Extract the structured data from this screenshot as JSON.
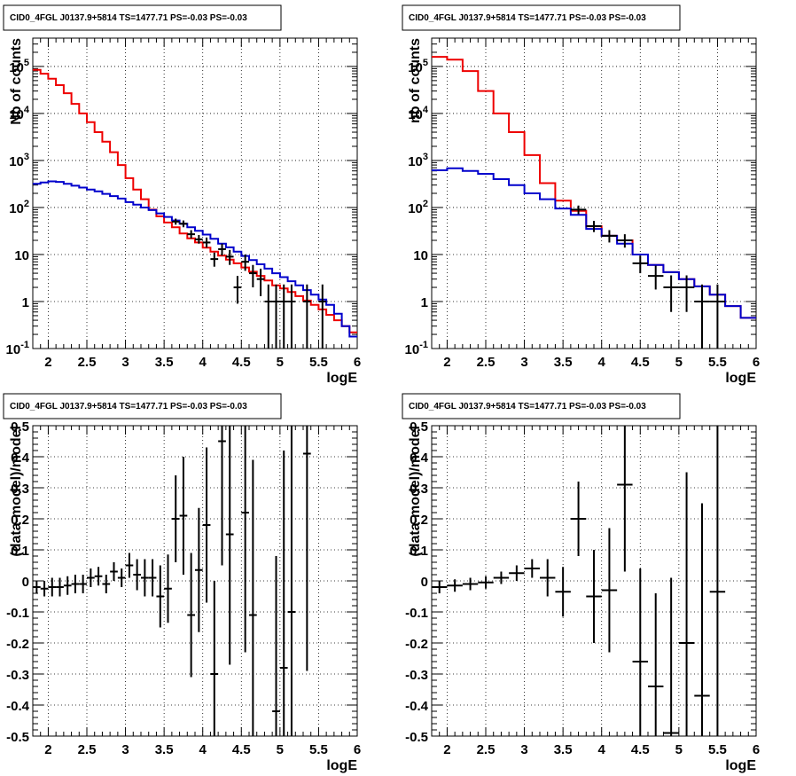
{
  "colors": {
    "data": "#000000",
    "model": "#ee0000",
    "bkg": "#0000cc",
    "grid": "#000000"
  },
  "chart_data": [
    {
      "type": "line",
      "title": "CID0_4FGL J0137.9+5814 TS=1477.71 PS=-0.03 PS=-0.03",
      "xlabel": "logE",
      "ylabel": "Nb of counts",
      "xlim": [
        1.8,
        6.0
      ],
      "ylim": [
        0.1,
        400000
      ],
      "yscale": "log",
      "grid": true,
      "xticks": [
        "2",
        "2.5",
        "3",
        "3.5",
        "4",
        "4.5",
        "5",
        "5.5",
        "6"
      ],
      "yticks": [
        "10^-1",
        "1",
        "10",
        "10^2",
        "10^3",
        "10^4",
        "10^5"
      ],
      "bin_edges": [
        1.8,
        1.9,
        2.0,
        2.1,
        2.2,
        2.3,
        2.4,
        2.5,
        2.6,
        2.7,
        2.8,
        2.9,
        3.0,
        3.1,
        3.2,
        3.3,
        3.4,
        3.5,
        3.6,
        3.7,
        3.8,
        3.9,
        4.0,
        4.1,
        4.2,
        4.3,
        4.4,
        4.5,
        4.6,
        4.7,
        4.8,
        4.9,
        5.0,
        5.1,
        5.2,
        5.3,
        5.4,
        5.5,
        5.6,
        5.7,
        5.8,
        5.9,
        6.0
      ],
      "series": [
        {
          "values": [
            85000,
            70000,
            55000,
            40000,
            27000,
            16000,
            10000,
            6500,
            4000,
            2500,
            1500,
            800,
            420,
            240,
            150,
            90,
            65,
            48,
            38,
            28,
            22,
            18,
            14,
            11.5,
            9.5,
            7.8,
            6.5,
            5.3,
            4.3,
            3.5,
            2.8,
            2.2,
            1.9,
            1.6,
            1.3,
            1.05,
            0.85,
            0.68,
            0.52,
            0.4,
            0.3,
            0.22
          ],
          "color": "red"
        },
        {
          "values": [
            320,
            340,
            360,
            350,
            320,
            290,
            265,
            240,
            220,
            195,
            175,
            155,
            130,
            115,
            100,
            88,
            75,
            63,
            53,
            45,
            38,
            32,
            26.5,
            21.5,
            17,
            14.2,
            11.5,
            9.3,
            7.6,
            6.2,
            5.0,
            4.0,
            3.3,
            2.7,
            2.2,
            1.75,
            1.4,
            1.1,
            0.85,
            0.55,
            0.3,
            0.18
          ],
          "color": "blue"
        }
      ],
      "points": [
        {
          "x": 3.65,
          "y": 50,
          "lo": 43,
          "hi": 58,
          "xerr": 0.05
        },
        {
          "x": 3.75,
          "y": 45,
          "lo": 38,
          "hi": 53,
          "xerr": 0.05
        },
        {
          "x": 3.85,
          "y": 27,
          "lo": 22,
          "hi": 33,
          "xerr": 0.05
        },
        {
          "x": 3.95,
          "y": 21,
          "lo": 17,
          "hi": 26,
          "xerr": 0.05
        },
        {
          "x": 4.05,
          "y": 18,
          "lo": 14,
          "hi": 23,
          "xerr": 0.05
        },
        {
          "x": 4.15,
          "y": 8,
          "lo": 5.5,
          "hi": 11,
          "xerr": 0.05
        },
        {
          "x": 4.25,
          "y": 13,
          "lo": 9.5,
          "hi": 17,
          "xerr": 0.05
        },
        {
          "x": 4.35,
          "y": 9,
          "lo": 6,
          "hi": 12.5,
          "xerr": 0.05
        },
        {
          "x": 4.45,
          "y": 2,
          "lo": 0.9,
          "hi": 3.5,
          "xerr": 0.05
        },
        {
          "x": 4.55,
          "y": 7,
          "lo": 4.5,
          "hi": 10,
          "xerr": 0.05
        },
        {
          "x": 4.65,
          "y": 4,
          "lo": 2,
          "hi": 6,
          "xerr": 0.05
        },
        {
          "x": 4.75,
          "y": 3,
          "lo": 1.3,
          "hi": 5,
          "xerr": 0.05
        },
        {
          "x": 4.85,
          "y": 1,
          "lo": 0.1,
          "hi": 2.3,
          "xerr": 0.05
        },
        {
          "x": 4.95,
          "y": 1,
          "lo": 0.1,
          "hi": 2.3,
          "xerr": 0.05
        },
        {
          "x": 5.05,
          "y": 1,
          "lo": 0.1,
          "hi": 2.3,
          "xerr": 0.05
        },
        {
          "x": 5.15,
          "y": 1,
          "lo": 0.1,
          "hi": 2.3,
          "xerr": 0.05
        },
        {
          "x": 5.35,
          "y": 1,
          "lo": 0.1,
          "hi": 2.3,
          "xerr": 0.05
        },
        {
          "x": 5.55,
          "y": 1,
          "lo": 0.1,
          "hi": 2.3,
          "xerr": 0.05
        }
      ]
    },
    {
      "type": "line",
      "title": "CID0_4FGL J0137.9+5814 TS=1477.71 PS=-0.03 PS=-0.03",
      "xlabel": "logE",
      "ylabel": "nb of counts",
      "xlim": [
        1.8,
        6.0
      ],
      "ylim": [
        0.1,
        400000
      ],
      "yscale": "log",
      "grid": true,
      "xticks": [
        "2",
        "2.5",
        "3",
        "3.5",
        "4",
        "4.5",
        "5",
        "5.5",
        "6"
      ],
      "yticks": [
        "10^-1",
        "1",
        "10",
        "10^2",
        "10^3",
        "10^4",
        "10^5"
      ],
      "bin_edges": [
        1.8,
        2.0,
        2.2,
        2.4,
        2.6,
        2.8,
        3.0,
        3.2,
        3.4,
        3.6,
        3.8,
        4.0,
        4.2,
        4.4,
        4.6,
        4.8,
        5.0,
        5.2,
        5.4,
        5.6,
        5.8,
        6.0
      ],
      "series": [
        {
          "values": [
            160000,
            140000,
            80000,
            30000,
            10000,
            4000,
            1300,
            330,
            140,
            85,
            40,
            25,
            20,
            10,
            6,
            4.2,
            3,
            2.1,
            1.4,
            0.8,
            0.45
          ],
          "color": "red"
        },
        {
          "values": [
            620,
            680,
            600,
            520,
            400,
            300,
            200,
            150,
            95,
            70,
            35,
            25,
            17,
            10,
            6,
            4.2,
            3,
            2.1,
            1.4,
            0.8,
            0.45
          ],
          "color": "blue"
        }
      ],
      "points": [
        {
          "x": 3.7,
          "y": 90,
          "lo": 72,
          "hi": 110,
          "xerr": 0.1
        },
        {
          "x": 3.9,
          "y": 40,
          "lo": 30,
          "hi": 52,
          "xerr": 0.1
        },
        {
          "x": 4.1,
          "y": 25,
          "lo": 18,
          "hi": 33,
          "xerr": 0.1
        },
        {
          "x": 4.3,
          "y": 20,
          "lo": 14,
          "hi": 27,
          "xerr": 0.1
        },
        {
          "x": 4.5,
          "y": 6.5,
          "lo": 4,
          "hi": 9.5,
          "xerr": 0.1
        },
        {
          "x": 4.7,
          "y": 3.5,
          "lo": 1.8,
          "hi": 5.8,
          "xerr": 0.1
        },
        {
          "x": 4.9,
          "y": 2,
          "lo": 0.6,
          "hi": 3.6,
          "xerr": 0.1
        },
        {
          "x": 5.1,
          "y": 2,
          "lo": 0.6,
          "hi": 3.6,
          "xerr": 0.1
        },
        {
          "x": 5.3,
          "y": 1,
          "lo": 0.1,
          "hi": 2.3,
          "xerr": 0.1
        },
        {
          "x": 5.5,
          "y": 1,
          "lo": 0.1,
          "hi": 2.3,
          "xerr": 0.1
        }
      ]
    },
    {
      "type": "scatter",
      "title": "CID0_4FGL J0137.9+5814 TS=1477.71 PS=-0.03 PS=-0.03",
      "xlabel": "logE",
      "ylabel": "(data-model)/model",
      "xlim": [
        1.8,
        6.0
      ],
      "ylim": [
        -0.5,
        0.5
      ],
      "grid": true,
      "xticks": [
        "2",
        "2.5",
        "3",
        "3.5",
        "4",
        "4.5",
        "5",
        "5.5",
        "6"
      ],
      "yticks": [
        "-0.5",
        "-0.4",
        "-0.3",
        "-0.2",
        "-0.1",
        "0",
        "0.1",
        "0.2",
        "0.3",
        "0.4",
        "0.5"
      ],
      "points": [
        {
          "x": 1.85,
          "y": -0.02,
          "err": 0.02,
          "xerr": 0.05
        },
        {
          "x": 1.95,
          "y": -0.025,
          "err": 0.025,
          "xerr": 0.05
        },
        {
          "x": 2.05,
          "y": -0.02,
          "err": 0.03,
          "xerr": 0.05
        },
        {
          "x": 2.15,
          "y": -0.02,
          "err": 0.03,
          "xerr": 0.05
        },
        {
          "x": 2.25,
          "y": -0.015,
          "err": 0.03,
          "xerr": 0.05
        },
        {
          "x": 2.35,
          "y": -0.01,
          "err": 0.03,
          "xerr": 0.05
        },
        {
          "x": 2.45,
          "y": -0.01,
          "err": 0.03,
          "xerr": 0.05
        },
        {
          "x": 2.55,
          "y": 0.01,
          "err": 0.03,
          "xerr": 0.05
        },
        {
          "x": 2.65,
          "y": 0.015,
          "err": 0.03,
          "xerr": 0.05
        },
        {
          "x": 2.75,
          "y": -0.01,
          "err": 0.03,
          "xerr": 0.05
        },
        {
          "x": 2.85,
          "y": 0.03,
          "err": 0.03,
          "xerr": 0.05
        },
        {
          "x": 2.95,
          "y": 0.01,
          "err": 0.03,
          "xerr": 0.05
        },
        {
          "x": 3.05,
          "y": 0.05,
          "err": 0.04,
          "xerr": 0.05
        },
        {
          "x": 3.15,
          "y": 0.02,
          "err": 0.05,
          "xerr": 0.05
        },
        {
          "x": 3.25,
          "y": 0.01,
          "err": 0.06,
          "xerr": 0.05
        },
        {
          "x": 3.35,
          "y": 0.01,
          "err": 0.06,
          "xerr": 0.05
        },
        {
          "x": 3.45,
          "y": -0.05,
          "err": 0.1,
          "xerr": 0.05
        },
        {
          "x": 3.55,
          "y": -0.025,
          "err": 0.11,
          "xerr": 0.05
        },
        {
          "x": 3.65,
          "y": 0.2,
          "err": 0.14,
          "xerr": 0.05
        },
        {
          "x": 3.75,
          "y": 0.21,
          "err": 0.19,
          "xerr": 0.05
        },
        {
          "x": 3.85,
          "y": -0.11,
          "err": 0.2,
          "xerr": 0.05
        },
        {
          "x": 3.95,
          "y": 0.035,
          "err": 0.2,
          "xerr": 0.05
        },
        {
          "x": 4.05,
          "y": 0.18,
          "err": 0.25,
          "xerr": 0.05
        },
        {
          "x": 4.15,
          "y": -0.3,
          "err": 0.3,
          "xerr": 0.05
        },
        {
          "x": 4.25,
          "y": 0.45,
          "err": 0.4,
          "xerr": 0.05
        },
        {
          "x": 4.35,
          "y": 0.15,
          "err": 0.42,
          "xerr": 0.05
        },
        {
          "x": 4.55,
          "y": 0.22,
          "err": 0.45,
          "xerr": 0.05
        },
        {
          "x": 4.65,
          "y": -0.11,
          "err": 0.5,
          "xerr": 0.05
        },
        {
          "x": 4.95,
          "y": -0.42,
          "err": 0.5,
          "xerr": 0.05
        },
        {
          "x": 5.05,
          "y": -0.28,
          "err": 0.7,
          "xerr": 0.05
        },
        {
          "x": 5.15,
          "y": -0.1,
          "err": 0.7,
          "xerr": 0.05
        },
        {
          "x": 5.35,
          "y": 0.41,
          "err": 0.7,
          "xerr": 0.05
        }
      ]
    },
    {
      "type": "scatter",
      "title": "CID0_4FGL J0137.9+5814 TS=1477.71 PS=-0.03 PS=-0.03",
      "xlabel": "logE",
      "ylabel": "(data-model)/model",
      "xlim": [
        1.8,
        6.0
      ],
      "ylim": [
        -0.5,
        0.5
      ],
      "grid": true,
      "xticks": [
        "2",
        "2.5",
        "3",
        "3.5",
        "4",
        "4.5",
        "5",
        "5.5",
        "6"
      ],
      "yticks": [
        "-0.5",
        "-0.4",
        "-0.3",
        "-0.2",
        "-0.1",
        "0",
        "0.1",
        "0.2",
        "0.3",
        "0.4",
        "0.5"
      ],
      "points": [
        {
          "x": 1.9,
          "y": -0.02,
          "err": 0.02,
          "xerr": 0.1
        },
        {
          "x": 2.1,
          "y": -0.015,
          "err": 0.02,
          "xerr": 0.1
        },
        {
          "x": 2.3,
          "y": -0.01,
          "err": 0.02,
          "xerr": 0.1
        },
        {
          "x": 2.5,
          "y": -0.005,
          "err": 0.02,
          "xerr": 0.1
        },
        {
          "x": 2.7,
          "y": 0.01,
          "err": 0.02,
          "xerr": 0.1
        },
        {
          "x": 2.9,
          "y": 0.025,
          "err": 0.025,
          "xerr": 0.1
        },
        {
          "x": 3.1,
          "y": 0.04,
          "err": 0.03,
          "xerr": 0.1
        },
        {
          "x": 3.3,
          "y": 0.01,
          "err": 0.06,
          "xerr": 0.1
        },
        {
          "x": 3.5,
          "y": -0.035,
          "err": 0.08,
          "xerr": 0.1
        },
        {
          "x": 3.7,
          "y": 0.2,
          "err": 0.12,
          "xerr": 0.1
        },
        {
          "x": 3.9,
          "y": -0.05,
          "err": 0.15,
          "xerr": 0.1
        },
        {
          "x": 4.1,
          "y": -0.03,
          "err": 0.2,
          "xerr": 0.1
        },
        {
          "x": 4.3,
          "y": 0.31,
          "err": 0.28,
          "xerr": 0.1
        },
        {
          "x": 4.5,
          "y": -0.26,
          "err": 0.3,
          "xerr": 0.1
        },
        {
          "x": 4.7,
          "y": -0.34,
          "err": 0.3,
          "xerr": 0.1
        },
        {
          "x": 4.9,
          "y": -0.49,
          "err": 0.5,
          "xerr": 0.1
        },
        {
          "x": 5.1,
          "y": -0.2,
          "err": 0.55,
          "xerr": 0.1
        },
        {
          "x": 5.3,
          "y": -0.37,
          "err": 0.62,
          "xerr": 0.1
        },
        {
          "x": 5.5,
          "y": -0.035,
          "err": 0.75,
          "xerr": 0.1
        }
      ]
    }
  ]
}
